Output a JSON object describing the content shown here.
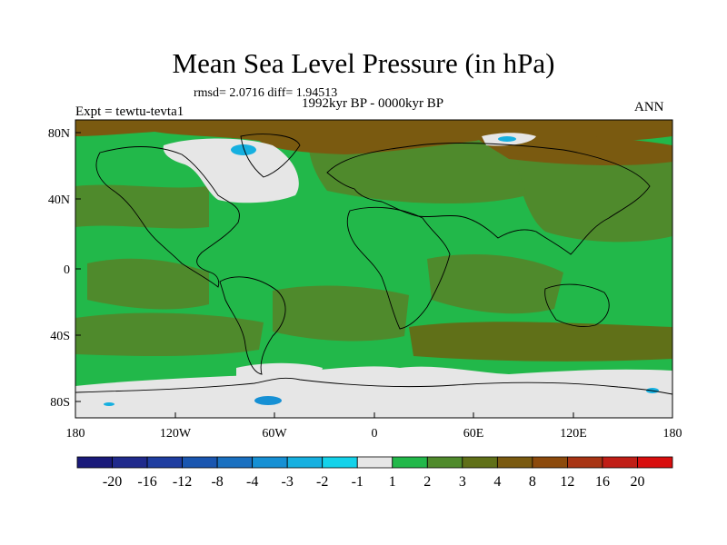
{
  "title": "Mean Sea Level Pressure (in hPa)",
  "stats": "rmsd= 2.0716 diff= 1.94513",
  "period": "1992kyr BP - 0000kyr BP",
  "experiment": "Expt = tewtu-tevta1",
  "season": "ANN",
  "lat_labels": [
    "80N",
    "40N",
    "0",
    "40S",
    "80S"
  ],
  "lon_labels": [
    "180",
    "120W",
    "60W",
    "0",
    "60E",
    "120E",
    "180"
  ],
  "colorbar": {
    "labels": [
      "-20",
      "-16",
      "-12",
      "-8",
      "-4",
      "-3",
      "-2",
      "-1",
      "1",
      "2",
      "3",
      "4",
      "8",
      "12",
      "16",
      "20"
    ],
    "colors": [
      "#1a1a7a",
      "#202a8c",
      "#1f3da0",
      "#1a56b0",
      "#1a70c0",
      "#1690d4",
      "#16b0e0",
      "#14d2ea",
      "#e6e6e6",
      "#22b84a",
      "#4f8a2c",
      "#607018",
      "#7a5a10",
      "#8c4a0c",
      "#a83414",
      "#c01e16",
      "#d80e0e"
    ]
  },
  "palette": {
    "green": "#22b84a",
    "darkgreen": "#4f8a2c",
    "olive": "#607018",
    "brown": "#7a5a10",
    "white": "#e6e6e6",
    "cyan": "#16b0e0",
    "blue": "#1690d4"
  }
}
